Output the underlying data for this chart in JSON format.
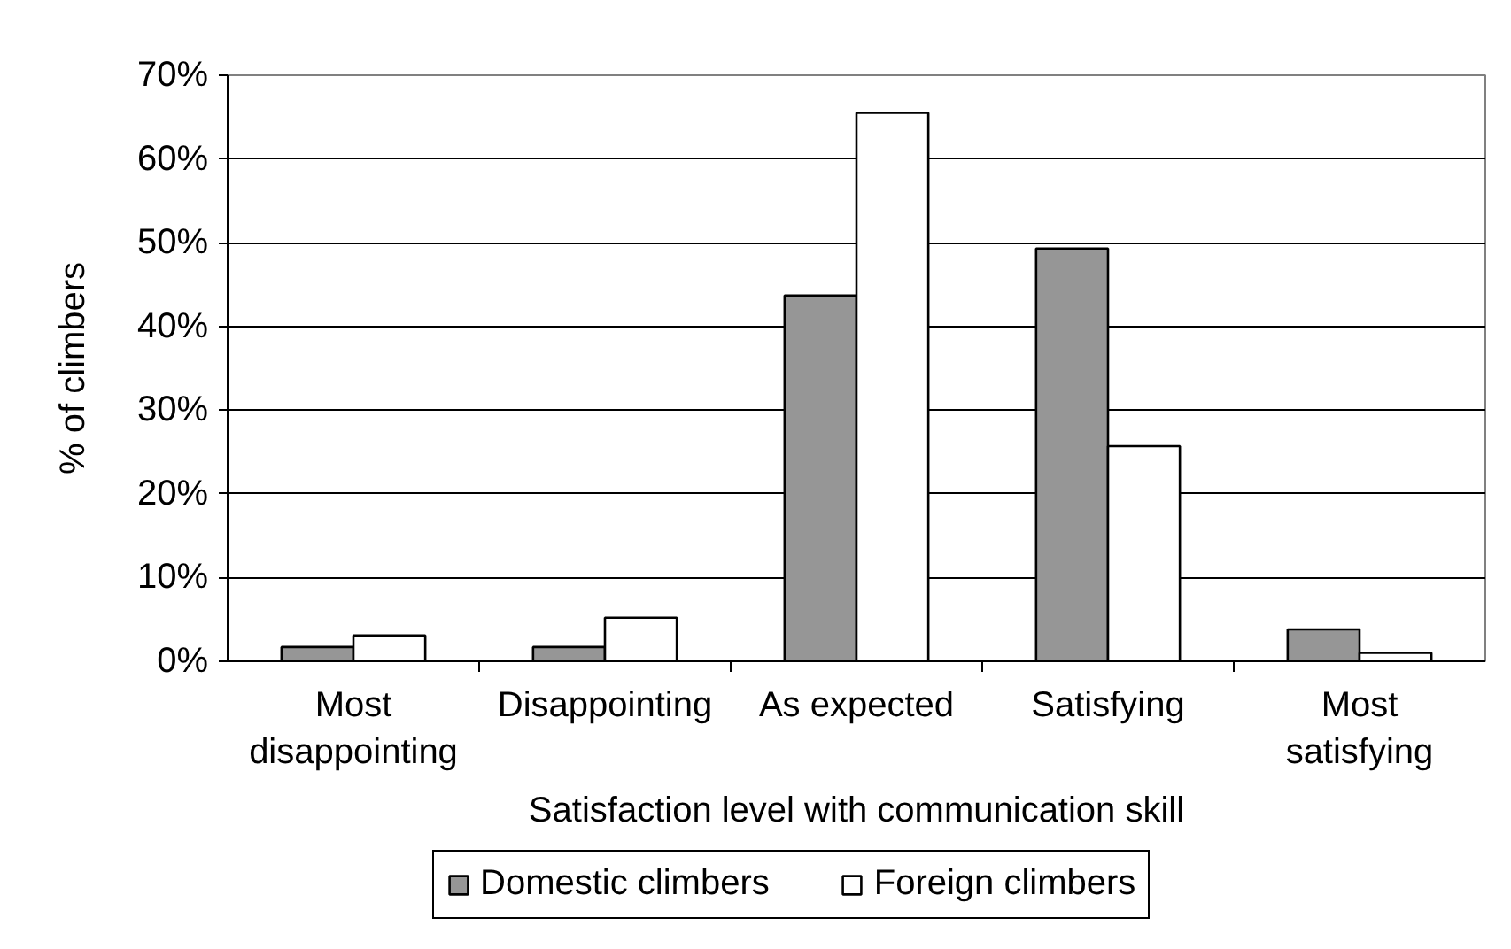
{
  "chart_data": {
    "type": "bar",
    "xlabel": "Satisfaction level with communication skill",
    "ylabel": "% of climbers",
    "categories": [
      "Most disappointing",
      "Disappointing",
      "As expected",
      "Satisfying",
      "Most satisfying"
    ],
    "series": [
      {
        "name": "Domestic climbers",
        "color": "#969696",
        "values": [
          1.7,
          1.7,
          43.7,
          49.3,
          3.8
        ]
      },
      {
        "name": "Foreign climbers",
        "color": "#ffffff",
        "values": [
          3.1,
          5.2,
          65.5,
          25.7,
          1.0
        ]
      }
    ],
    "ylim": [
      0,
      70
    ],
    "yticks": [
      {
        "value": 0,
        "label": "0%"
      },
      {
        "value": 10,
        "label": "10%"
      },
      {
        "value": 20,
        "label": "20%"
      },
      {
        "value": 30,
        "label": "30%"
      },
      {
        "value": 40,
        "label": "40%"
      },
      {
        "value": 50,
        "label": "50%"
      },
      {
        "value": 60,
        "label": "60%"
      },
      {
        "value": 70,
        "label": "70%"
      }
    ],
    "grid": "y",
    "legend": "bottom"
  }
}
